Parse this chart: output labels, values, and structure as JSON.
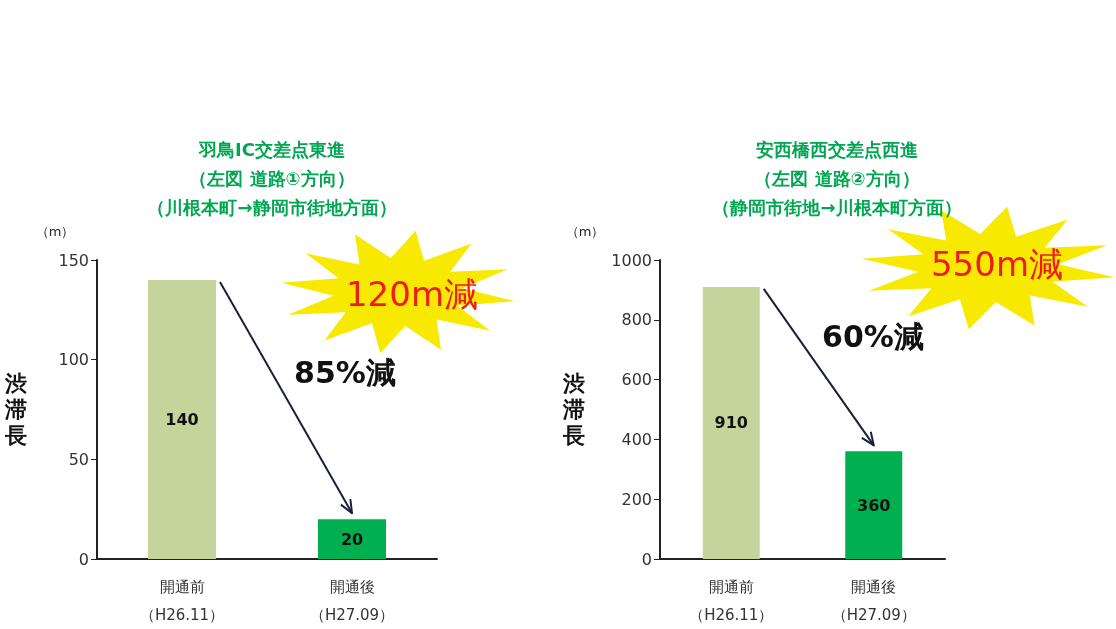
{
  "chart_data": [
    {
      "type": "bar",
      "title": "羽鳥IC交差点東進（左図 道路①方向）（川根本町→静岡市街地方面）",
      "ylabel": "渋滞長",
      "categories": [
        "開通前（H26.11）",
        "開通後（H27.09）"
      ],
      "values": [
        140,
        20
      ],
      "colors": [
        "#c4d49a",
        "#00b050"
      ],
      "ylim": [
        0,
        150
      ],
      "yticks": [
        0,
        50,
        100,
        150
      ],
      "data_labels": true,
      "annotations": [
        "（m）",
        "85%減",
        "120m減"
      ]
    },
    {
      "type": "bar",
      "title": "安西橋西交差点西進（左図 道路②方向）（静岡市街地→川根本町方面）",
      "ylabel": "渋滞長",
      "categories": [
        "開通前（H26.11）",
        "開通後（H27.09）"
      ],
      "values": [
        910,
        360
      ],
      "colors": [
        "#c4d49a",
        "#00b050"
      ],
      "ylim": [
        0,
        1000
      ],
      "yticks": [
        0,
        200,
        400,
        600,
        800,
        1000
      ],
      "data_labels": true,
      "annotations": [
        "（m）",
        "60%減",
        "550m減"
      ]
    }
  ]
}
